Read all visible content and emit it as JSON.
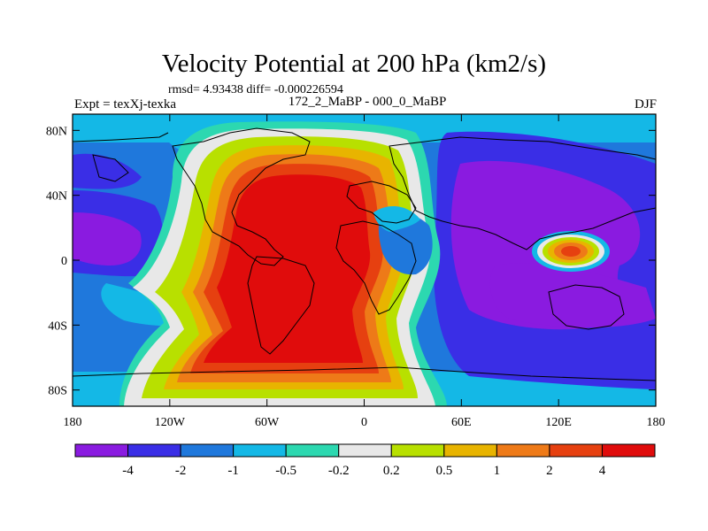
{
  "chart_data": {
    "type": "heatmap",
    "title": "Velocity Potential at 200 hPa (km2/s)",
    "stats_text": "rmsd= 4.93438  diff= -0.000226594",
    "left_label": "Expt = texXj-texka",
    "center_label": "172_2_MaBP - 000_0_MaBP",
    "right_label": "DJF",
    "x_ticks": [
      "180",
      "120W",
      "60W",
      "0",
      "60E",
      "120E",
      "180"
    ],
    "x_values": [
      -180,
      -120,
      -60,
      0,
      60,
      120,
      180
    ],
    "y_ticks": [
      "80N",
      "40N",
      "0",
      "40S",
      "80S"
    ],
    "y_values": [
      80,
      40,
      0,
      -40,
      -80
    ],
    "xlim": [
      -180,
      180
    ],
    "ylim": [
      -90,
      90
    ],
    "colorbar": {
      "colors": [
        "#8a1be0",
        "#3a2ee6",
        "#1f78dc",
        "#14b8e6",
        "#2cd8b0",
        "#e8e8e8",
        "#b8e000",
        "#e8b400",
        "#ee7a18",
        "#e64010",
        "#e00c0c"
      ],
      "labels": [
        "-4",
        "-2",
        "-1",
        "-0.5",
        "-0.2",
        "0.2",
        "0.5",
        "1",
        "2",
        "4"
      ]
    }
  }
}
